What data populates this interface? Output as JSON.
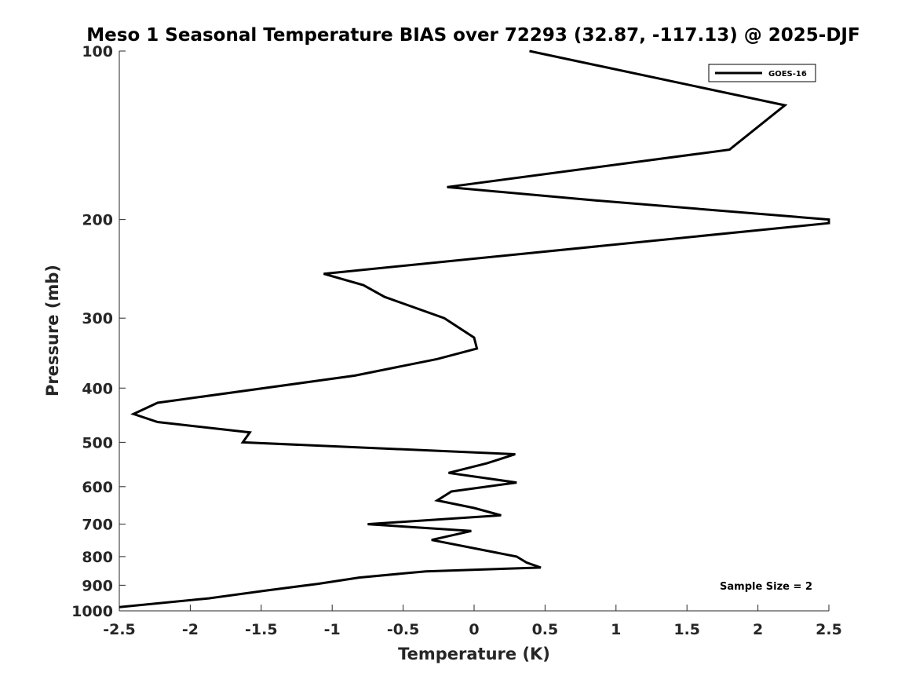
{
  "chart_data": {
    "type": "line",
    "title": "Meso 1 Seasonal Temperature BIAS over 72293 (32.87, -117.13) @ 2025-DJF",
    "xlabel": "Temperature (K)",
    "ylabel": "Pressure (mb)",
    "xlim": [
      -2.5,
      2.5
    ],
    "ylim": [
      100,
      1000
    ],
    "y_scale": "log",
    "y_reversed": true,
    "grid": false,
    "x_ticks": [
      -2.5,
      -2,
      -1.5,
      -1,
      -0.5,
      0,
      0.5,
      1,
      1.5,
      2,
      2.5
    ],
    "x_tick_labels": [
      "-2.5",
      "-2",
      "-1.5",
      "-1",
      "-0.5",
      "0",
      "0.5",
      "1",
      "1.5",
      "2",
      "2.5"
    ],
    "y_ticks": [
      100,
      200,
      300,
      400,
      500,
      600,
      700,
      800,
      900,
      1000
    ],
    "y_tick_labels": [
      "100",
      "200",
      "300",
      "400",
      "500",
      "600",
      "700",
      "800",
      "900",
      "1000"
    ],
    "legend_position": "top-right",
    "series": [
      {
        "name": "GOES-16",
        "color": "#000000",
        "points": [
          {
            "x": 0.39,
            "p": 100
          },
          {
            "x": 2.19,
            "p": 125
          },
          {
            "x": 1.8,
            "p": 150
          },
          {
            "x": -0.19,
            "p": 175
          },
          {
            "x": 0.87,
            "p": 185
          },
          {
            "x": 2.5,
            "p": 200
          },
          {
            "x": 2.5,
            "p": 203
          },
          {
            "x": -1.06,
            "p": 250
          },
          {
            "x": -0.78,
            "p": 262
          },
          {
            "x": -0.63,
            "p": 275
          },
          {
            "x": -0.21,
            "p": 300
          },
          {
            "x": 0.0,
            "p": 325
          },
          {
            "x": 0.02,
            "p": 340
          },
          {
            "x": -0.26,
            "p": 355
          },
          {
            "x": -0.84,
            "p": 380
          },
          {
            "x": -2.23,
            "p": 425
          },
          {
            "x": -2.4,
            "p": 445
          },
          {
            "x": -2.23,
            "p": 460
          },
          {
            "x": -1.58,
            "p": 480
          },
          {
            "x": -1.63,
            "p": 500
          },
          {
            "x": 0.29,
            "p": 525
          },
          {
            "x": 0.09,
            "p": 545
          },
          {
            "x": -0.18,
            "p": 567
          },
          {
            "x": 0.3,
            "p": 590
          },
          {
            "x": -0.16,
            "p": 612
          },
          {
            "x": -0.26,
            "p": 635
          },
          {
            "x": 0.0,
            "p": 655
          },
          {
            "x": 0.19,
            "p": 675
          },
          {
            "x": -0.75,
            "p": 700
          },
          {
            "x": -0.02,
            "p": 720
          },
          {
            "x": -0.3,
            "p": 747
          },
          {
            "x": 0.3,
            "p": 800
          },
          {
            "x": 0.37,
            "p": 820
          },
          {
            "x": 0.47,
            "p": 837
          },
          {
            "x": -0.34,
            "p": 850
          },
          {
            "x": -0.81,
            "p": 872
          },
          {
            "x": -1.1,
            "p": 895
          },
          {
            "x": -1.47,
            "p": 920
          },
          {
            "x": -1.87,
            "p": 950
          },
          {
            "x": -2.5,
            "p": 985
          }
        ]
      }
    ],
    "annotations": [
      {
        "text": "Sample Size = 2",
        "position": "bottom-right"
      }
    ]
  }
}
